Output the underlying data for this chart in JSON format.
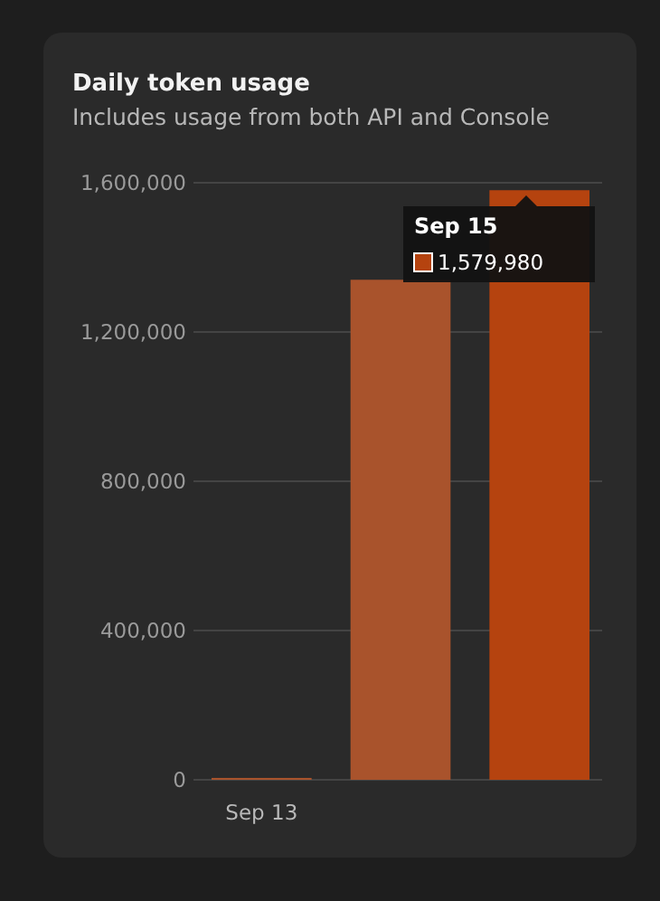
{
  "chart_data": {
    "type": "bar",
    "title": "Daily token usage",
    "subtitle": "Includes usage from both API and Console",
    "categories": [
      "Sep 13",
      null,
      null
    ],
    "values": [
      5000,
      1340000,
      1579980
    ],
    "colors": [
      "#a9532c",
      "#a9532c",
      "#b5430f"
    ],
    "value_labels": [
      null,
      null,
      "1,579,980"
    ],
    "annotations": [
      "Sep 15"
    ],
    "ylim": [
      0,
      1600000
    ],
    "yticks": [
      0,
      {
        "value": 400000,
        "label": "400,000"
      },
      {
        "value": 800000,
        "label": "800,000"
      },
      {
        "value": 1200000,
        "label": "1,200,000"
      },
      {
        "value": 1600000,
        "label": "1,600,000"
      }
    ],
    "grid": "y"
  }
}
